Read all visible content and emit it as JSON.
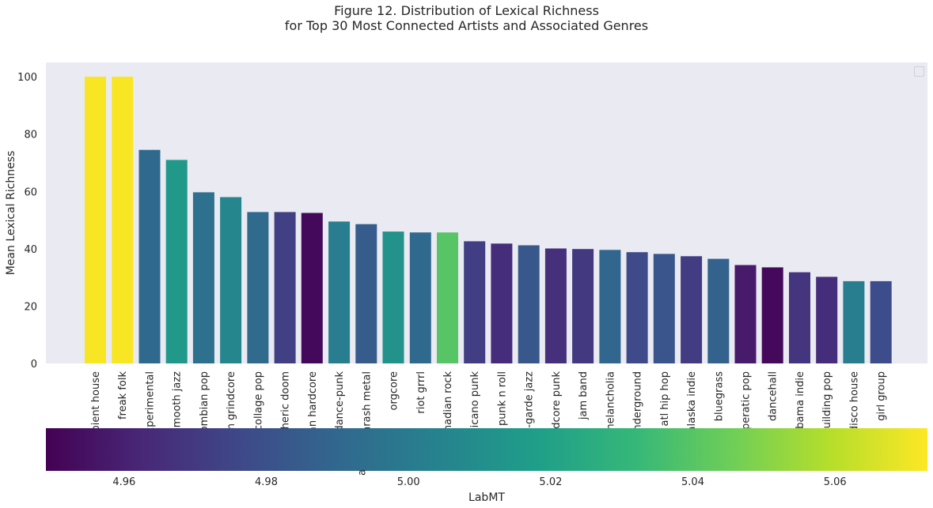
{
  "figure": {
    "title_line1": "Figure 12. Distribution of Lexical Richness",
    "title_line2": "for Top 30 Most Connected Artists and Associated Genres"
  },
  "chart_data": {
    "type": "bar",
    "title": "Figure 12. Distribution of Lexical Richness\nfor Top 30 Most Connected Artists and Associated Genres",
    "ylabel": "Mean Lexical Richness",
    "xlabel": "",
    "ylim": [
      0,
      105
    ],
    "yticks": [
      0,
      20,
      40,
      60,
      80,
      100
    ],
    "grid": false,
    "legend": "top-right (empty)",
    "categories": [
      "ambient house",
      "freak folk",
      "experimental",
      "smooth jazz",
      "colombian pop",
      "brazilian grindcore",
      "collage pop",
      "atmospheric doom",
      "italian hardcore",
      "dance-punk",
      "thrash metal",
      "orgcore",
      "riot grrrl",
      "canadian rock",
      "chicano punk",
      "punk n roll",
      "avant-garde jazz",
      "hardcore punk",
      "jam band",
      "melancholia",
      "underground",
      "atl hip hop",
      "alaska indie",
      "bluegrass",
      "operatic pop",
      "dancehall",
      "alabama indie",
      "building pop",
      "disco house",
      "girl group"
    ],
    "tick_labels_visible": [
      "mbient house",
      "freak folk",
      "experimental",
      "smooth jazz",
      "lombian pop",
      "an grindcore",
      "collage pop",
      "spheric doom",
      "an hardcore",
      "dance-punk",
      "thrash metal",
      "orgcore",
      "riot grrrl",
      "anadian rock",
      "hicano punk",
      "punk n roll",
      "nt-garde jazz",
      "rdcore punk",
      "jam band",
      "melancholia",
      "underground",
      "atl hip hop",
      "alaska indie",
      "bluegrass",
      "operatic pop",
      "dancehall",
      "abama indie",
      "building pop",
      "disco house",
      "girl group"
    ],
    "values": [
      100,
      100,
      74.5,
      71,
      59.7,
      58,
      52.8,
      52.8,
      52.5,
      49.5,
      48.6,
      46,
      45.7,
      45.7,
      42.6,
      41.8,
      41.2,
      40.1,
      39.9,
      39.6,
      38.8,
      38.2,
      37.4,
      36.5,
      34.3,
      33.5,
      31.8,
      30.2,
      28.7,
      28.7
    ],
    "labmt": [
      5.072,
      5.072,
      4.991,
      5.015,
      4.995,
      5.006,
      4.992,
      4.973,
      4.952,
      5.002,
      4.985,
      5.012,
      4.991,
      5.04,
      4.972,
      4.965,
      4.983,
      4.966,
      4.97,
      4.99,
      4.977,
      4.982,
      4.971,
      4.988,
      4.958,
      4.952,
      4.968,
      4.965,
      5.002,
      4.978
    ],
    "colorbar": {
      "label": "LabMT",
      "range": [
        4.949,
        5.073
      ],
      "ticks": [
        4.96,
        4.98,
        5.0,
        5.02,
        5.04,
        5.06
      ],
      "tick_labels": [
        "4.96",
        "4.98",
        "5.00",
        "5.02",
        "5.04",
        "5.06"
      ],
      "colormap": "viridis",
      "stray_text": "a"
    },
    "colors": {
      "plot_background": "#eaeaf2",
      "text": "#262626"
    }
  }
}
